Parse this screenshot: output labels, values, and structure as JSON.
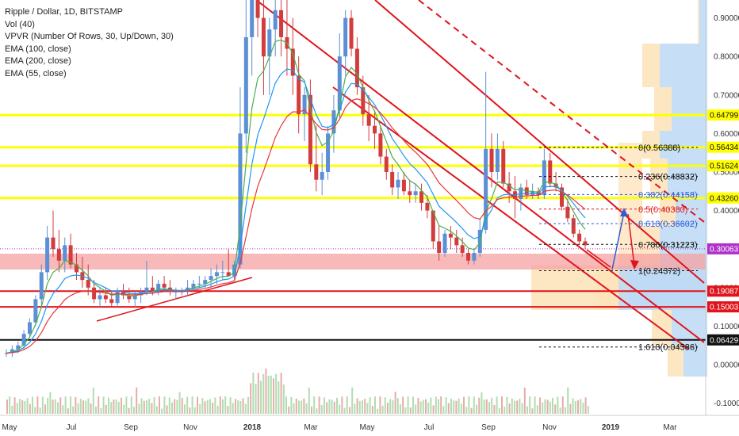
{
  "legend": {
    "title": "Ripple / Dollar, 1D, BITSTAMP",
    "vol": "Vol (40)",
    "vpvr": "VPVR (Number Of Rows, 30, Up/Down, 30)",
    "ema100": "EMA (100, close)",
    "ema200": "EMA (200, close)",
    "ema55": "EMA (55, close)"
  },
  "colors": {
    "up": "#5b8fd6",
    "down": "#d23c3c",
    "ema55": "#4caf50",
    "ema100": "#2196f3",
    "ema200": "#e53935",
    "yellow": "#ffff00",
    "red_line": "#e0141c",
    "vpvr_up": "#bcd9f5",
    "vpvr_down": "#fde3b8"
  },
  "chart_data": {
    "type": "candlestick",
    "x_ticks": [
      "May",
      "Jul",
      "Sep",
      "Nov",
      "2018",
      "Mar",
      "May",
      "Jul",
      "Sep",
      "Nov",
      "2019",
      "Mar"
    ],
    "y_ticks": [
      "0.90000",
      "0.80000",
      "0.70000",
      "0.60000",
      "0.50000",
      "0.40000",
      "0.30000",
      "0.20000",
      "0.10000",
      "0.00000",
      "-0.10000"
    ],
    "ylim": [
      -0.14,
      0.95
    ],
    "fib_levels": [
      {
        "label": "0(0.56388)",
        "value": 0.56388,
        "color": "#111111"
      },
      {
        "label": "0.236(0.48832)",
        "value": 0.48832,
        "color": "#111111"
      },
      {
        "label": "0.382(0.44158)",
        "value": 0.44158,
        "color": "#2e5cd6"
      },
      {
        "label": "0.5(0.40380)",
        "value": 0.4038,
        "color": "#e0141c"
      },
      {
        "label": "0.618(0.36602)",
        "value": 0.36602,
        "color": "#2e5cd6"
      },
      {
        "label": "0.786(0.31223)",
        "value": 0.31223,
        "color": "#111111"
      },
      {
        "label": "1(0.24372)",
        "value": 0.24372,
        "color": "#111111"
      },
      {
        "label": "1.618(0.04586)",
        "value": 0.04586,
        "color": "#111111"
      }
    ],
    "price_tags": [
      {
        "label": "0.64799",
        "value": 0.64799,
        "bg": "#ffff00",
        "fg": "#111111"
      },
      {
        "label": "0.56434",
        "value": 0.56434,
        "bg": "#ffff00",
        "fg": "#111111"
      },
      {
        "label": "0.51624",
        "value": 0.51624,
        "bg": "#ffff00",
        "fg": "#111111"
      },
      {
        "label": "0.43260",
        "value": 0.4326,
        "bg": "#ffff00",
        "fg": "#111111"
      },
      {
        "label": "0.30063",
        "value": 0.30063,
        "bg": "#b033c9",
        "fg": "#ffffff"
      },
      {
        "label": "0.19087",
        "value": 0.19087,
        "bg": "#e0141c",
        "fg": "#ffffff"
      },
      {
        "label": "0.15003",
        "value": 0.15003,
        "bg": "#e0141c",
        "fg": "#ffffff"
      },
      {
        "label": "0.06429",
        "value": 0.06429,
        "bg": "#111111",
        "fg": "#ffffff"
      }
    ],
    "series": [
      {
        "type": "candlestick",
        "ohlc": [
          [
            0.03,
            0.04,
            0.02,
            0.03
          ],
          [
            0.03,
            0.05,
            0.02,
            0.04
          ],
          [
            0.04,
            0.06,
            0.03,
            0.05
          ],
          [
            0.05,
            0.09,
            0.04,
            0.08
          ],
          [
            0.08,
            0.12,
            0.07,
            0.11
          ],
          [
            0.11,
            0.18,
            0.1,
            0.17
          ],
          [
            0.17,
            0.26,
            0.15,
            0.24
          ],
          [
            0.24,
            0.36,
            0.22,
            0.33
          ],
          [
            0.33,
            0.4,
            0.28,
            0.3
          ],
          [
            0.3,
            0.35,
            0.24,
            0.27
          ],
          [
            0.27,
            0.33,
            0.24,
            0.31
          ],
          [
            0.31,
            0.34,
            0.25,
            0.26
          ],
          [
            0.26,
            0.29,
            0.22,
            0.24
          ],
          [
            0.24,
            0.28,
            0.2,
            0.22
          ],
          [
            0.22,
            0.26,
            0.18,
            0.2
          ],
          [
            0.2,
            0.22,
            0.16,
            0.17
          ],
          [
            0.17,
            0.2,
            0.15,
            0.18
          ],
          [
            0.18,
            0.2,
            0.16,
            0.17
          ],
          [
            0.17,
            0.19,
            0.15,
            0.16
          ],
          [
            0.16,
            0.2,
            0.15,
            0.19
          ],
          [
            0.19,
            0.21,
            0.17,
            0.18
          ],
          [
            0.18,
            0.2,
            0.16,
            0.17
          ],
          [
            0.17,
            0.19,
            0.15,
            0.18
          ],
          [
            0.18,
            0.2,
            0.16,
            0.19
          ],
          [
            0.19,
            0.27,
            0.18,
            0.2
          ],
          [
            0.2,
            0.23,
            0.18,
            0.19
          ],
          [
            0.19,
            0.22,
            0.18,
            0.21
          ],
          [
            0.21,
            0.23,
            0.19,
            0.2
          ],
          [
            0.2,
            0.22,
            0.18,
            0.19
          ],
          [
            0.19,
            0.2,
            0.17,
            0.19
          ],
          [
            0.19,
            0.2,
            0.18,
            0.19
          ],
          [
            0.19,
            0.22,
            0.18,
            0.2
          ],
          [
            0.2,
            0.22,
            0.19,
            0.21
          ],
          [
            0.21,
            0.23,
            0.2,
            0.21
          ],
          [
            0.21,
            0.23,
            0.2,
            0.22
          ],
          [
            0.22,
            0.25,
            0.2,
            0.23
          ],
          [
            0.23,
            0.26,
            0.21,
            0.24
          ],
          [
            0.24,
            0.27,
            0.22,
            0.24
          ],
          [
            0.24,
            0.3,
            0.23,
            0.23
          ],
          [
            0.23,
            0.27,
            0.22,
            0.26
          ],
          [
            0.26,
            0.72,
            0.25,
            0.6
          ],
          [
            0.6,
            1.0,
            0.55,
            0.85
          ],
          [
            0.85,
            1.0,
            0.75,
            0.95
          ],
          [
            0.95,
            1.0,
            0.85,
            0.9
          ],
          [
            0.9,
            0.95,
            0.7,
            0.8
          ],
          [
            0.8,
            0.9,
            0.7,
            0.87
          ],
          [
            0.87,
            0.98,
            0.8,
            0.92
          ],
          [
            0.92,
            0.99,
            0.8,
            0.85
          ],
          [
            0.85,
            0.95,
            0.75,
            0.82
          ],
          [
            0.82,
            0.9,
            0.7,
            0.75
          ],
          [
            0.75,
            0.8,
            0.6,
            0.65
          ],
          [
            0.65,
            0.72,
            0.58,
            0.7
          ],
          [
            0.7,
            0.74,
            0.5,
            0.52
          ],
          [
            0.52,
            0.62,
            0.45,
            0.48
          ],
          [
            0.48,
            0.55,
            0.44,
            0.5
          ],
          [
            0.5,
            0.62,
            0.48,
            0.6
          ],
          [
            0.6,
            0.7,
            0.55,
            0.66
          ],
          [
            0.66,
            0.86,
            0.64,
            0.8
          ],
          [
            0.8,
            0.92,
            0.75,
            0.9
          ],
          [
            0.9,
            0.92,
            0.8,
            0.82
          ],
          [
            0.82,
            0.85,
            0.7,
            0.72
          ],
          [
            0.72,
            0.75,
            0.62,
            0.65
          ],
          [
            0.65,
            0.7,
            0.58,
            0.62
          ],
          [
            0.62,
            0.66,
            0.56,
            0.6
          ],
          [
            0.6,
            0.62,
            0.52,
            0.54
          ],
          [
            0.54,
            0.56,
            0.48,
            0.5
          ],
          [
            0.5,
            0.52,
            0.44,
            0.46
          ],
          [
            0.46,
            0.5,
            0.43,
            0.48
          ],
          [
            0.48,
            0.5,
            0.44,
            0.45
          ],
          [
            0.45,
            0.48,
            0.42,
            0.44
          ],
          [
            0.44,
            0.47,
            0.42,
            0.45
          ],
          [
            0.45,
            0.47,
            0.4,
            0.42
          ],
          [
            0.42,
            0.44,
            0.38,
            0.4
          ],
          [
            0.4,
            0.4,
            0.3,
            0.32
          ],
          [
            0.32,
            0.36,
            0.27,
            0.29
          ],
          [
            0.29,
            0.35,
            0.28,
            0.34
          ],
          [
            0.34,
            0.36,
            0.3,
            0.33
          ],
          [
            0.33,
            0.35,
            0.29,
            0.31
          ],
          [
            0.31,
            0.33,
            0.28,
            0.29
          ],
          [
            0.29,
            0.3,
            0.26,
            0.27
          ],
          [
            0.27,
            0.3,
            0.26,
            0.29
          ],
          [
            0.29,
            0.38,
            0.28,
            0.35
          ],
          [
            0.35,
            0.76,
            0.34,
            0.56
          ],
          [
            0.56,
            0.6,
            0.46,
            0.5
          ],
          [
            0.5,
            0.6,
            0.48,
            0.56
          ],
          [
            0.56,
            0.58,
            0.46,
            0.47
          ],
          [
            0.47,
            0.5,
            0.42,
            0.45
          ],
          [
            0.45,
            0.49,
            0.38,
            0.43
          ],
          [
            0.43,
            0.47,
            0.4,
            0.46
          ],
          [
            0.46,
            0.48,
            0.43,
            0.44
          ],
          [
            0.44,
            0.47,
            0.43,
            0.45
          ],
          [
            0.45,
            0.46,
            0.43,
            0.44
          ],
          [
            0.44,
            0.56,
            0.43,
            0.53
          ],
          [
            0.53,
            0.55,
            0.46,
            0.47
          ],
          [
            0.47,
            0.5,
            0.45,
            0.46
          ],
          [
            0.46,
            0.47,
            0.4,
            0.41
          ],
          [
            0.41,
            0.43,
            0.37,
            0.38
          ],
          [
            0.38,
            0.39,
            0.33,
            0.34
          ],
          [
            0.34,
            0.35,
            0.31,
            0.32
          ],
          [
            0.32,
            0.33,
            0.3,
            0.31
          ]
        ]
      }
    ]
  }
}
